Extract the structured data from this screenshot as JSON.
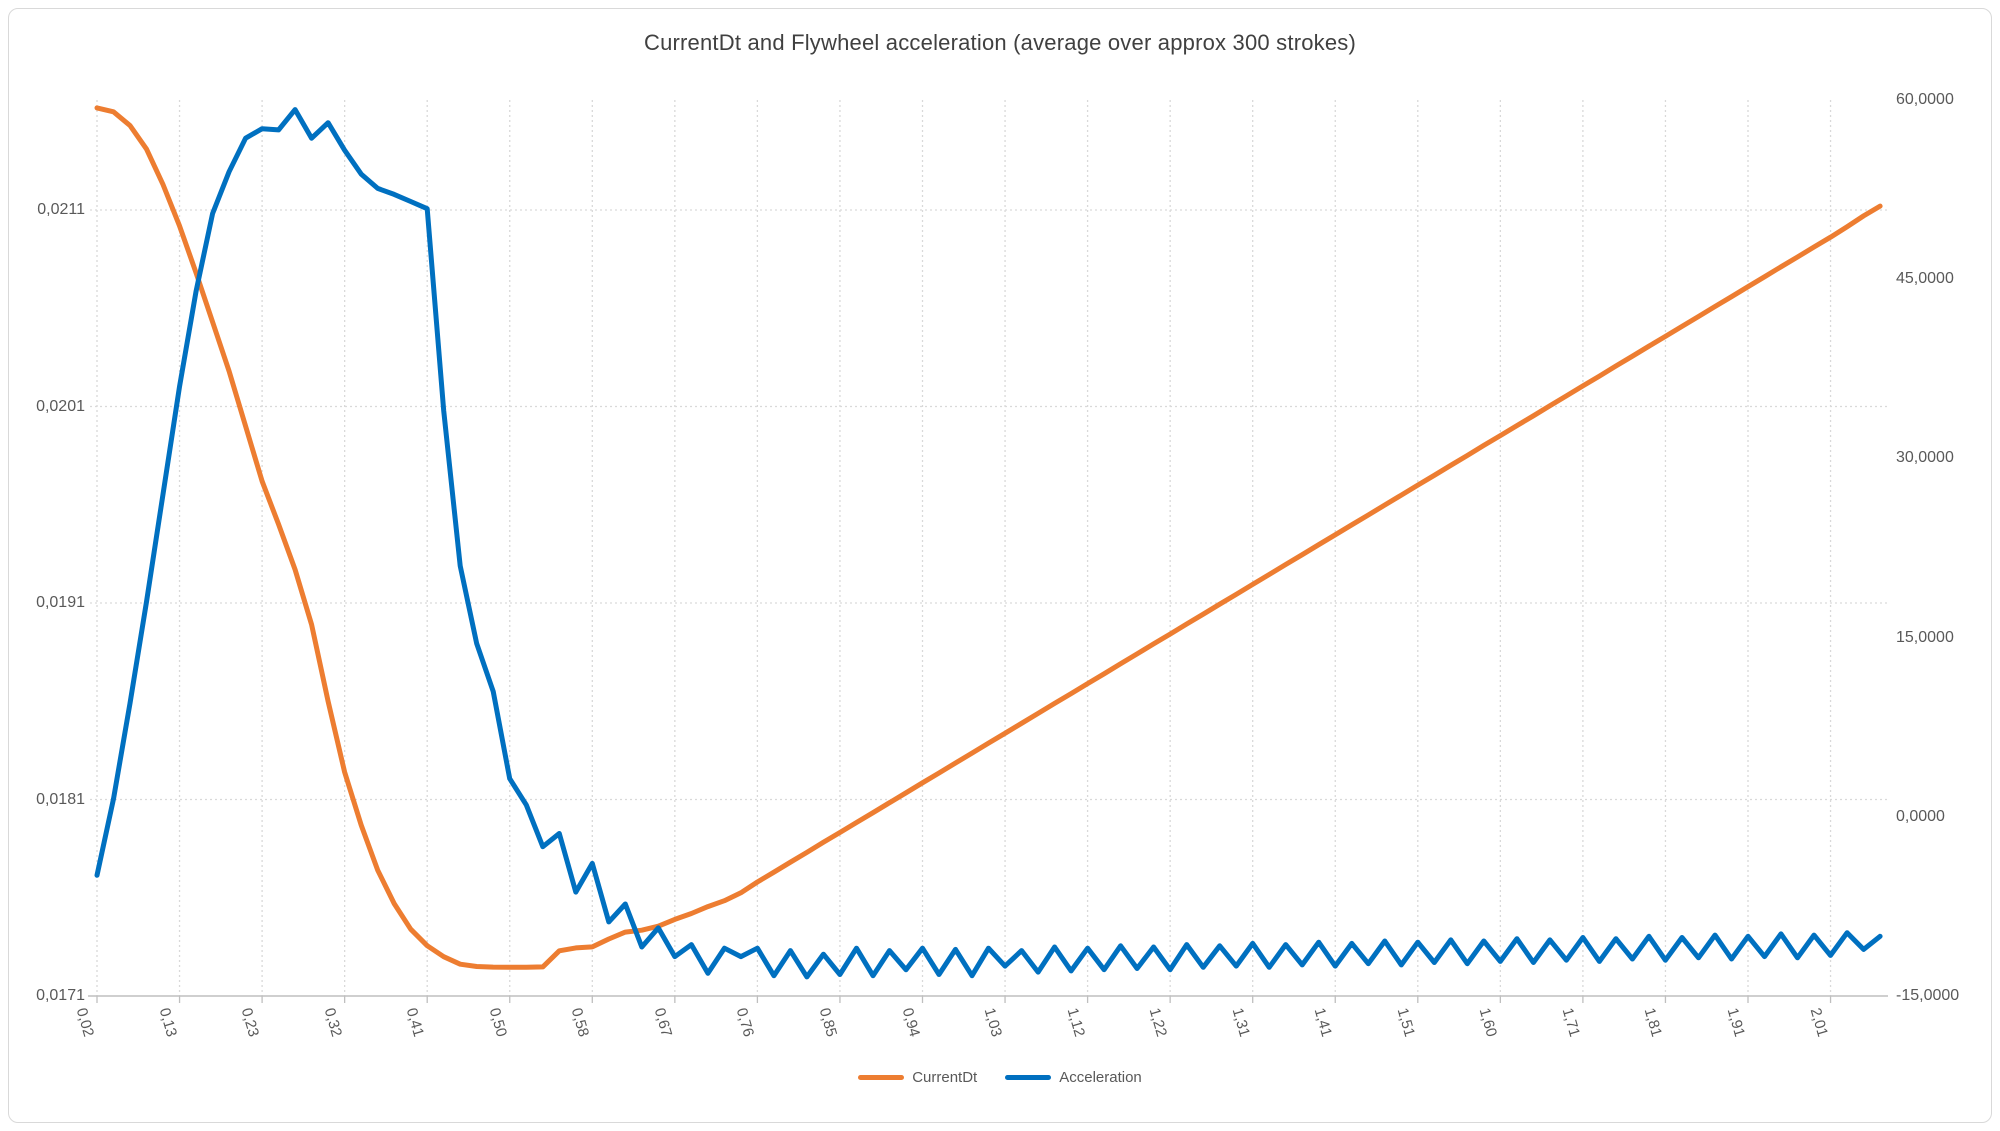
{
  "title": "CurrentDt and Flywheel acceleration (average over approx 300 strokes)",
  "legend": {
    "items": [
      {
        "label": "CurrentDt",
        "color": "#ED7D31"
      },
      {
        "label": "Acceleration",
        "color": "#0070C0"
      }
    ]
  },
  "colors": {
    "currentdt": "#ED7D31",
    "acceleration": "#0070C0",
    "gridline": "#D9D9D9",
    "axis_line": "#BFBFBF",
    "text": "#595959"
  },
  "chart_data": {
    "type": "line",
    "title": "CurrentDt and Flywheel acceleration (average over approx 300 strokes)",
    "grid": "dotted horizontal and vertical gridlines",
    "legend_position": "bottom-center",
    "x_axis": {
      "tick_labels": [
        "0,02",
        "0,13",
        "0,23",
        "0,32",
        "0,41",
        "0,50",
        "0,58",
        "0,67",
        "0,76",
        "0,85",
        "0,94",
        "1,03",
        "1,12",
        "1,22",
        "1,31",
        "1,41",
        "1,51",
        "1,60",
        "1,71",
        "1,81",
        "1,91",
        "2,01"
      ],
      "samples_per_label": 5,
      "label_rotation_deg": 74
    },
    "left_axis": {
      "series": "CurrentDt",
      "tick_labels": [
        "0,0171",
        "0,0181",
        "0,0191",
        "0,0201",
        "0,0211"
      ],
      "tick_values": [
        0.0171,
        0.0181,
        0.0191,
        0.0201,
        0.0211
      ],
      "ylim": [
        0.0171,
        0.02166
      ]
    },
    "right_axis": {
      "series": "Acceleration",
      "tick_labels": [
        "-15,0000",
        "0,0000",
        "15,0000",
        "30,0000",
        "45,0000",
        "60,0000"
      ],
      "tick_values": [
        -15,
        0,
        15,
        30,
        45,
        60
      ],
      "ylim": [
        -15,
        60
      ]
    },
    "series": [
      {
        "name": "CurrentDt",
        "axis": "left",
        "color": "#ED7D31",
        "values": [
          0.02162,
          0.0216,
          0.02153,
          0.02141,
          0.02123,
          0.02102,
          0.02078,
          0.02053,
          0.02028,
          0.02,
          0.01972,
          0.0195,
          0.01927,
          0.01899,
          0.0186,
          0.01824,
          0.01797,
          0.01774,
          0.01757,
          0.01744,
          0.017356,
          0.0173,
          0.017262,
          0.01725,
          0.017247,
          0.017246,
          0.017246,
          0.017248,
          0.01733,
          0.017345,
          0.01735,
          0.01739,
          0.017425,
          0.017435,
          0.017455,
          0.01749,
          0.01752,
          0.017555,
          0.017585,
          0.017625,
          0.01768,
          0.01773,
          0.017781,
          0.017831,
          0.017882,
          0.017932,
          0.017983,
          0.018033,
          0.018084,
          0.018134,
          0.018185,
          0.018235,
          0.018286,
          0.018336,
          0.018387,
          0.018437,
          0.018488,
          0.018538,
          0.018589,
          0.018639,
          0.01869,
          0.01874,
          0.018791,
          0.018841,
          0.018892,
          0.018942,
          0.018993,
          0.019043,
          0.019094,
          0.019144,
          0.019195,
          0.019245,
          0.019296,
          0.019346,
          0.019397,
          0.019447,
          0.019498,
          0.019548,
          0.019599,
          0.019649,
          0.0197,
          0.01975,
          0.019801,
          0.019851,
          0.019902,
          0.019952,
          0.020003,
          0.020053,
          0.020104,
          0.020154,
          0.020205,
          0.020255,
          0.020306,
          0.020356,
          0.020407,
          0.020457,
          0.020508,
          0.020558,
          0.020609,
          0.020659,
          0.02071,
          0.02076,
          0.020811,
          0.020861,
          0.020912,
          0.020962,
          0.021015,
          0.02107,
          0.02112
        ]
      },
      {
        "name": "Acceleration",
        "axis": "right",
        "color": "#0070C0",
        "values": [
          -4.9,
          1.5,
          9.5,
          18,
          27,
          36,
          44,
          50.5,
          54,
          56.8,
          57.6,
          57.5,
          59.2,
          56.8,
          58.1,
          55.8,
          53.8,
          52.6,
          52.1,
          51.5,
          50.9,
          34,
          21,
          14.5,
          10.5,
          3.2,
          1.0,
          -2.5,
          -1.4,
          -6.3,
          -3.9,
          -8.8,
          -7.3,
          -10.9,
          -9.3,
          -11.7,
          -10.7,
          -13.1,
          -11.0,
          -11.7,
          -11.0,
          -13.3,
          -11.2,
          -13.4,
          -11.5,
          -13.2,
          -11.0,
          -13.3,
          -11.2,
          -12.8,
          -11.0,
          -13.2,
          -11.1,
          -13.3,
          -11.0,
          -12.5,
          -11.2,
          -13.0,
          -10.9,
          -12.9,
          -11.0,
          -12.8,
          -10.8,
          -12.7,
          -10.9,
          -12.8,
          -10.7,
          -12.6,
          -10.8,
          -12.5,
          -10.6,
          -12.6,
          -10.7,
          -12.4,
          -10.5,
          -12.5,
          -10.6,
          -12.3,
          -10.4,
          -12.4,
          -10.5,
          -12.2,
          -10.3,
          -12.3,
          -10.4,
          -12.1,
          -10.2,
          -12.2,
          -10.3,
          -12.0,
          -10.1,
          -12.1,
          -10.2,
          -11.9,
          -10.0,
          -12.0,
          -10.1,
          -11.8,
          -9.9,
          -11.9,
          -10.0,
          -11.7,
          -9.8,
          -11.8,
          -9.9,
          -11.6,
          -9.7,
          -11.1,
          -10.0
        ]
      }
    ]
  }
}
